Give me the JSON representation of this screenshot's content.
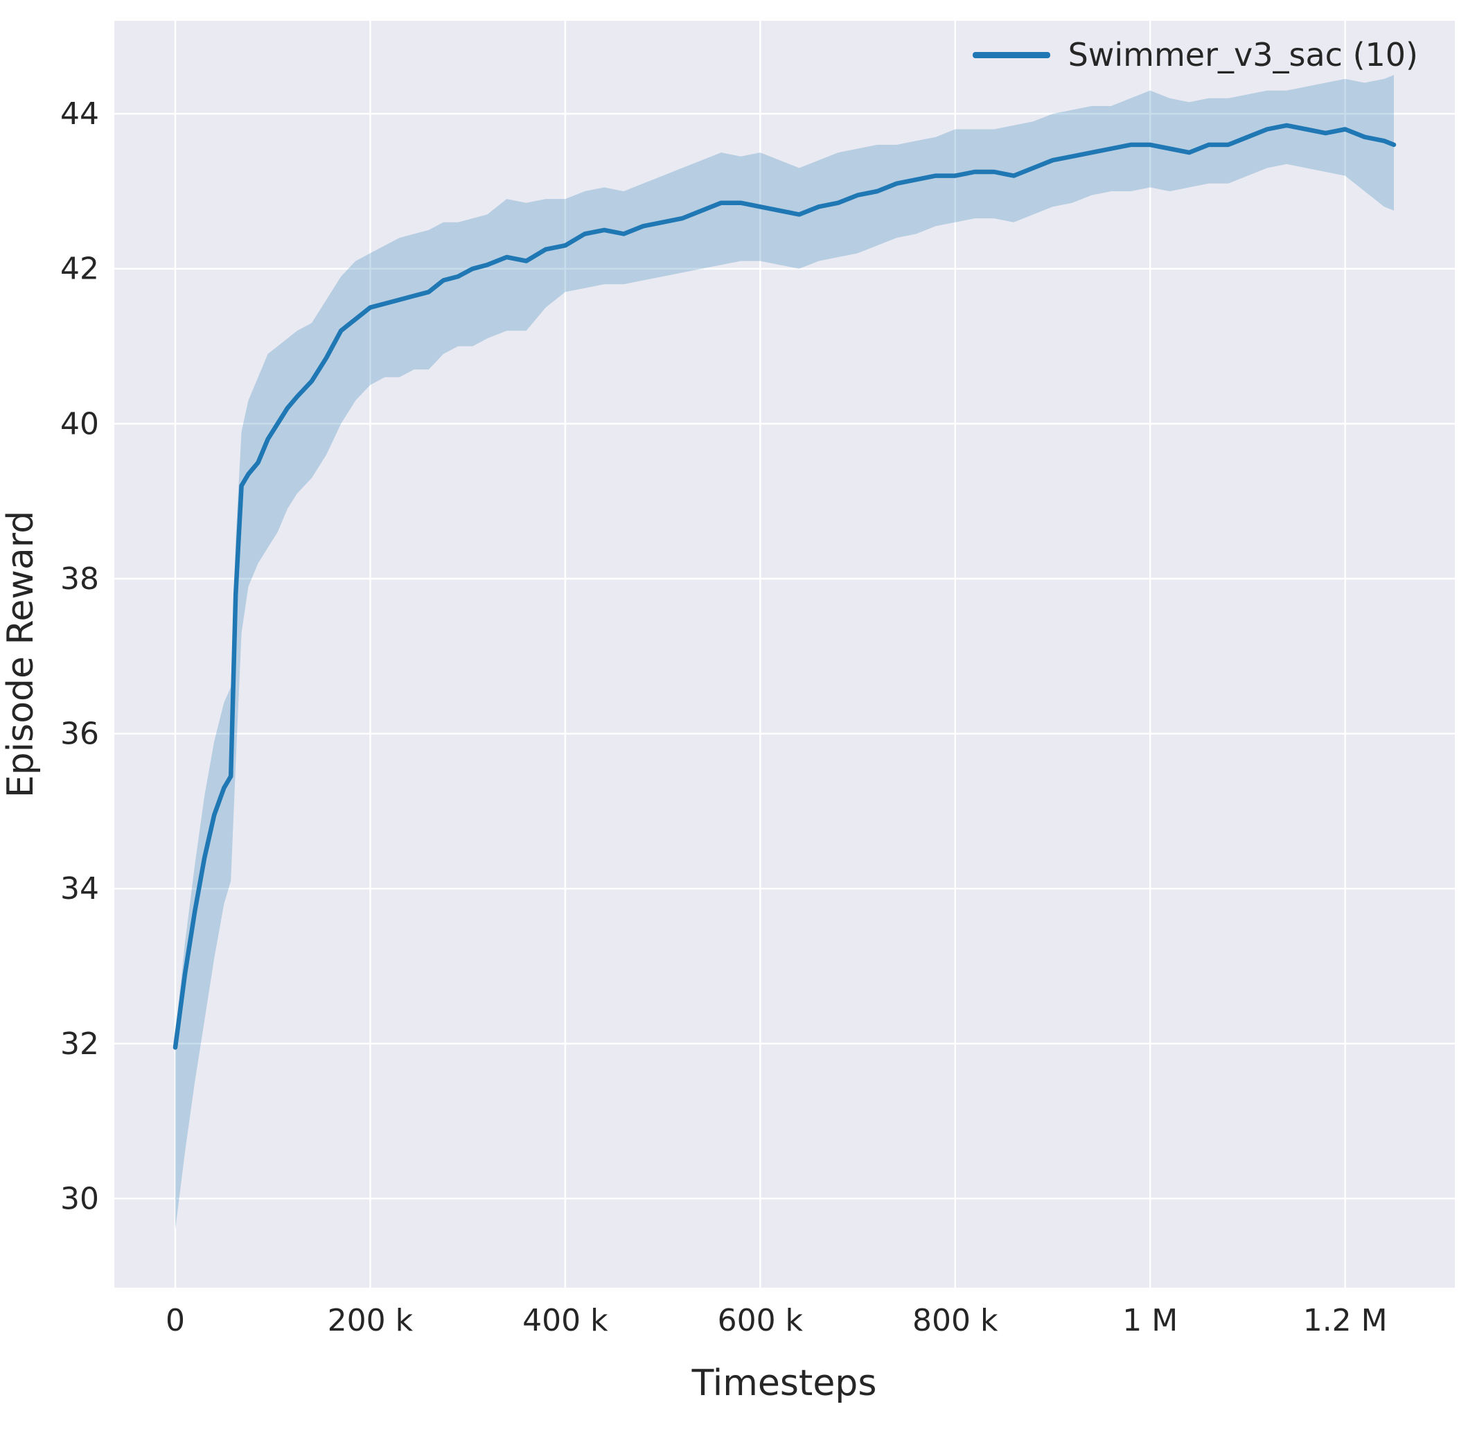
{
  "colors": {
    "line": "#1f77b4",
    "band": "rgba(31,119,180,0.25)",
    "axes_bg": "#eaeaf2",
    "grid": "#ffffff",
    "text": "#262626"
  },
  "chart_data": {
    "type": "line",
    "title": "",
    "xlabel": "Timesteps",
    "ylabel": "Episode Reward",
    "xlim": [
      -62500,
      1312500
    ],
    "ylim": [
      28.85,
      45.2
    ],
    "grid": true,
    "legend_position": "upper right",
    "xticks": {
      "values": [
        0,
        200000,
        400000,
        600000,
        800000,
        1000000,
        1200000
      ],
      "labels": [
        "0",
        "200 k",
        "400 k",
        "600 k",
        "800 k",
        "1 M",
        "1.2 M"
      ]
    },
    "yticks": {
      "values": [
        30,
        32,
        34,
        36,
        38,
        40,
        42,
        44
      ],
      "labels": [
        "30",
        "32",
        "34",
        "36",
        "38",
        "40",
        "42",
        "44"
      ]
    },
    "x": [
      0,
      10000,
      20000,
      30000,
      40000,
      50000,
      57000,
      62000,
      68000,
      75000,
      85000,
      95000,
      105000,
      115000,
      125000,
      140000,
      155000,
      170000,
      185000,
      200000,
      215000,
      230000,
      245000,
      260000,
      275000,
      290000,
      305000,
      320000,
      340000,
      360000,
      380000,
      400000,
      420000,
      440000,
      460000,
      480000,
      500000,
      520000,
      540000,
      560000,
      580000,
      600000,
      620000,
      640000,
      660000,
      680000,
      700000,
      720000,
      740000,
      760000,
      780000,
      800000,
      820000,
      840000,
      860000,
      880000,
      900000,
      920000,
      940000,
      960000,
      980000,
      1000000,
      1020000,
      1040000,
      1060000,
      1080000,
      1100000,
      1120000,
      1140000,
      1160000,
      1180000,
      1200000,
      1220000,
      1240000,
      1250000
    ],
    "series": [
      {
        "name": "Swimmer_v3_sac (10)",
        "mean": [
          31.95,
          32.9,
          33.7,
          34.4,
          34.95,
          35.3,
          35.45,
          37.8,
          39.2,
          39.35,
          39.5,
          39.8,
          40.0,
          40.2,
          40.35,
          40.55,
          40.85,
          41.2,
          41.35,
          41.5,
          41.55,
          41.6,
          41.65,
          41.7,
          41.85,
          41.9,
          42.0,
          42.05,
          42.15,
          42.1,
          42.25,
          42.3,
          42.45,
          42.5,
          42.45,
          42.55,
          42.6,
          42.65,
          42.75,
          42.85,
          42.85,
          42.8,
          42.75,
          42.7,
          42.8,
          42.85,
          42.95,
          43.0,
          43.1,
          43.15,
          43.2,
          43.2,
          43.25,
          43.25,
          43.2,
          43.3,
          43.4,
          43.45,
          43.5,
          43.55,
          43.6,
          43.6,
          43.55,
          43.5,
          43.6,
          43.6,
          43.7,
          43.8,
          43.85,
          43.8,
          43.75,
          43.8,
          43.7,
          43.65,
          43.6
        ],
        "lower": [
          29.6,
          30.6,
          31.5,
          32.3,
          33.1,
          33.8,
          34.1,
          35.6,
          37.3,
          37.9,
          38.2,
          38.4,
          38.6,
          38.9,
          39.1,
          39.3,
          39.6,
          40.0,
          40.3,
          40.5,
          40.6,
          40.6,
          40.7,
          40.7,
          40.9,
          41.0,
          41.0,
          41.1,
          41.2,
          41.2,
          41.5,
          41.7,
          41.75,
          41.8,
          41.8,
          41.85,
          41.9,
          41.95,
          42.0,
          42.05,
          42.1,
          42.1,
          42.05,
          42.0,
          42.1,
          42.15,
          42.2,
          42.3,
          42.4,
          42.45,
          42.55,
          42.6,
          42.65,
          42.65,
          42.6,
          42.7,
          42.8,
          42.85,
          42.95,
          43.0,
          43.0,
          43.05,
          43.0,
          43.05,
          43.1,
          43.1,
          43.2,
          43.3,
          43.35,
          43.3,
          43.25,
          43.2,
          43.0,
          42.8,
          42.75
        ],
        "upper": [
          32.1,
          33.3,
          34.3,
          35.2,
          35.9,
          36.4,
          36.6,
          38.5,
          39.9,
          40.3,
          40.6,
          40.9,
          41.0,
          41.1,
          41.2,
          41.3,
          41.6,
          41.9,
          42.1,
          42.2,
          42.3,
          42.4,
          42.45,
          42.5,
          42.6,
          42.6,
          42.65,
          42.7,
          42.9,
          42.85,
          42.9,
          42.9,
          43.0,
          43.05,
          43.0,
          43.1,
          43.2,
          43.3,
          43.4,
          43.5,
          43.45,
          43.5,
          43.4,
          43.3,
          43.4,
          43.5,
          43.55,
          43.6,
          43.6,
          43.65,
          43.7,
          43.8,
          43.8,
          43.8,
          43.85,
          43.9,
          44.0,
          44.05,
          44.1,
          44.1,
          44.2,
          44.3,
          44.2,
          44.15,
          44.2,
          44.2,
          44.25,
          44.3,
          44.3,
          44.35,
          44.4,
          44.45,
          44.4,
          44.45,
          44.5
        ]
      }
    ]
  }
}
